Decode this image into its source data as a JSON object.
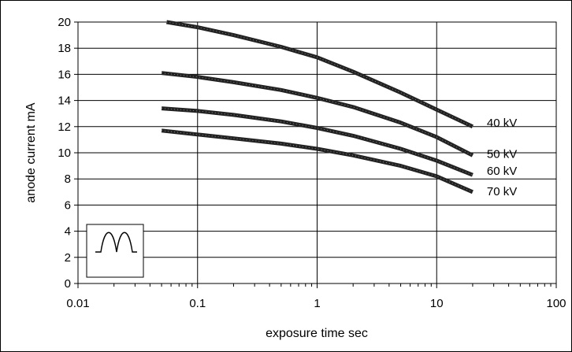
{
  "chart_data": {
    "type": "line",
    "title": "",
    "xlabel": "exposure time sec",
    "ylabel": "anode current mA",
    "xscale": "log",
    "xlim": [
      0.01,
      100
    ],
    "ylim": [
      0,
      20
    ],
    "x_ticks": [
      "0.01",
      "0.1",
      "1",
      "10",
      "100"
    ],
    "y_ticks": [
      "0",
      "2",
      "4",
      "6",
      "8",
      "10",
      "12",
      "14",
      "16",
      "18",
      "20"
    ],
    "grid": true,
    "line_color": "#222222",
    "inset_icon": "double-hump-waveform-icon",
    "series": [
      {
        "name": "40 kV",
        "x": [
          0.055,
          0.1,
          0.2,
          0.5,
          1,
          2,
          5,
          10,
          20
        ],
        "y": [
          20.0,
          19.6,
          19.0,
          18.1,
          17.3,
          16.2,
          14.6,
          13.3,
          12.0
        ]
      },
      {
        "name": "50 kV",
        "x": [
          0.05,
          0.1,
          0.2,
          0.5,
          1,
          2,
          5,
          10,
          20
        ],
        "y": [
          16.1,
          15.8,
          15.4,
          14.8,
          14.2,
          13.5,
          12.3,
          11.2,
          9.8
        ]
      },
      {
        "name": "60 kV",
        "x": [
          0.05,
          0.1,
          0.2,
          0.5,
          1,
          2,
          5,
          10,
          20
        ],
        "y": [
          13.4,
          13.2,
          12.9,
          12.4,
          11.9,
          11.3,
          10.3,
          9.4,
          8.3
        ]
      },
      {
        "name": "70 kV",
        "x": [
          0.05,
          0.1,
          0.2,
          0.5,
          1,
          2,
          5,
          10,
          20
        ],
        "y": [
          11.7,
          11.4,
          11.1,
          10.7,
          10.3,
          9.8,
          9.0,
          8.2,
          7.0
        ]
      }
    ]
  }
}
